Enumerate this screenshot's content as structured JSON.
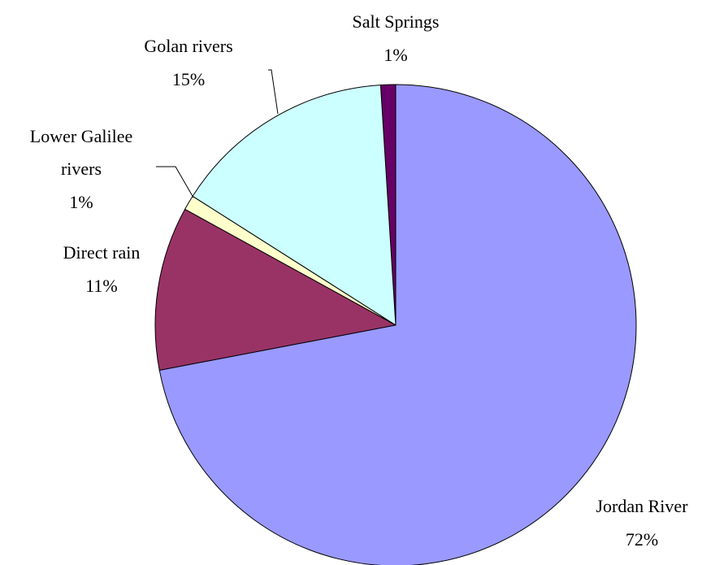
{
  "chart_data": {
    "type": "pie",
    "categories": [
      "Jordan River",
      "Direct rain",
      "Lower Galilee rivers",
      "Golan rivers",
      "Salt Springs"
    ],
    "values": [
      72,
      11,
      1,
      15,
      1
    ],
    "value_labels": [
      "72%",
      "11%",
      "1%",
      "15%",
      "1%"
    ],
    "colors": [
      "#9999ff",
      "#993366",
      "#ffffcc",
      "#ccffff",
      "#660066"
    ]
  }
}
